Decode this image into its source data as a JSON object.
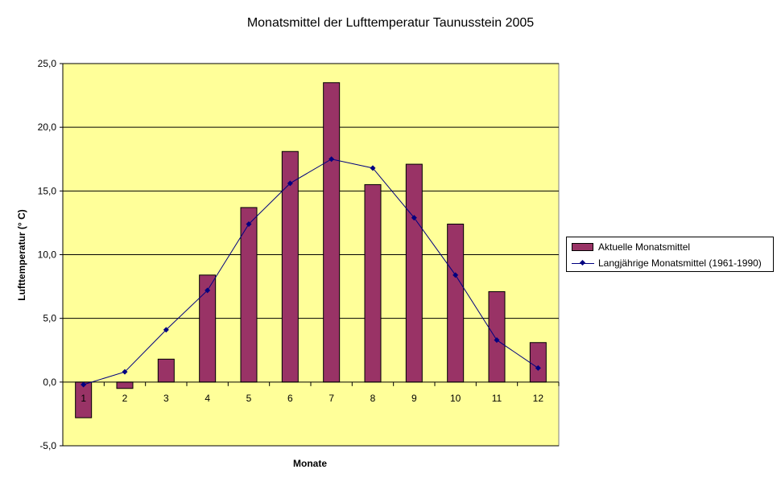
{
  "chart_data": {
    "type": "bar",
    "title": "Monatsmittel der Lufttemperatur  Taunusstein 2005",
    "xlabel": "Monate",
    "ylabel": "Lufttemperatur (° C)",
    "ylim": [
      -5,
      25
    ],
    "yticks": [
      "-5,0",
      "0,0",
      "5,0",
      "10,0",
      "15,0",
      "20,0",
      "25,0"
    ],
    "categories": [
      "1",
      "2",
      "3",
      "4",
      "5",
      "6",
      "7",
      "8",
      "9",
      "10",
      "11",
      "12"
    ],
    "grid": true,
    "legend_position": "right",
    "series": [
      {
        "name": "Aktuelle Monatsmittel",
        "type": "bar",
        "color": "#993366",
        "values": [
          -2.8,
          -0.5,
          1.8,
          8.4,
          13.7,
          18.1,
          23.5,
          15.5,
          17.1,
          12.4,
          7.1,
          3.1
        ]
      },
      {
        "name": "Langjährige Monatsmittel (1961-1990)",
        "type": "line",
        "color": "#000080",
        "values": [
          -0.2,
          0.8,
          4.1,
          7.2,
          12.4,
          15.6,
          17.5,
          16.8,
          12.9,
          8.4,
          3.3,
          1.1
        ]
      }
    ],
    "plot_background": "#FFFF99"
  }
}
